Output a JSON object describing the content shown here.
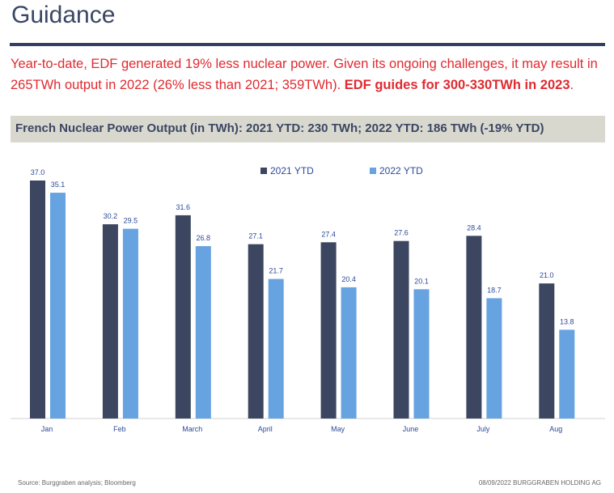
{
  "title": "Guidance",
  "lead": {
    "text": "Year-to-date, EDF generated 19% less nuclear power. Given its ongoing challenges, it may result in 265TWh output in 2022 (26% less than 2021; 359TWh). ",
    "bold": "EDF guides for 300-330TWh in 2023",
    "end": "."
  },
  "band": "French Nuclear Power Output (in TWh): 2021 YTD: 230 TWh; 2022 YTD: 186 TWh (-19% YTD)",
  "chart_data": {
    "type": "bar",
    "categories": [
      "Jan",
      "Feb",
      "March",
      "April",
      "May",
      "June",
      "July",
      "Aug"
    ],
    "series": [
      {
        "name": "2021 YTD",
        "color": "#3c4660",
        "values": [
          37.0,
          30.2,
          31.6,
          27.1,
          27.4,
          27.6,
          28.4,
          21.0
        ]
      },
      {
        "name": "2022 YTD",
        "color": "#66a3e0",
        "values": [
          35.1,
          29.5,
          26.8,
          21.7,
          20.4,
          20.1,
          18.7,
          13.8
        ]
      }
    ],
    "legend": "top-center",
    "ylim": [
      0,
      37
    ]
  },
  "footer": {
    "source": "Source: Burggraben analysis; Bloomberg",
    "right": "08/09/2022  BURGGRABEN HOLDING AG"
  }
}
